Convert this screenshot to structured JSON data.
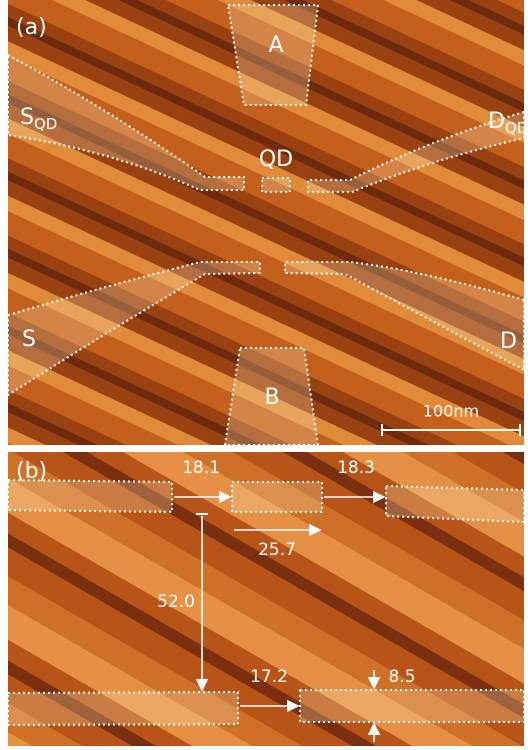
{
  "panel_a": {
    "label": "(a)",
    "gate_top": "A",
    "gate_bottom": "B",
    "qd": "QD",
    "source_qd": {
      "main": "S",
      "sub": "QD"
    },
    "drain_qd": {
      "main": "D",
      "sub": "QD"
    },
    "source": "S",
    "drain": "D",
    "scale_bar": "100nm"
  },
  "panel_b": {
    "label": "(b)",
    "gap_top_left": "18.1",
    "gap_top_right": "18.3",
    "dot_length": "25.7",
    "vertical_spacing": "52.0",
    "gap_bottom": "17.2",
    "lead_width": "8.5"
  }
}
